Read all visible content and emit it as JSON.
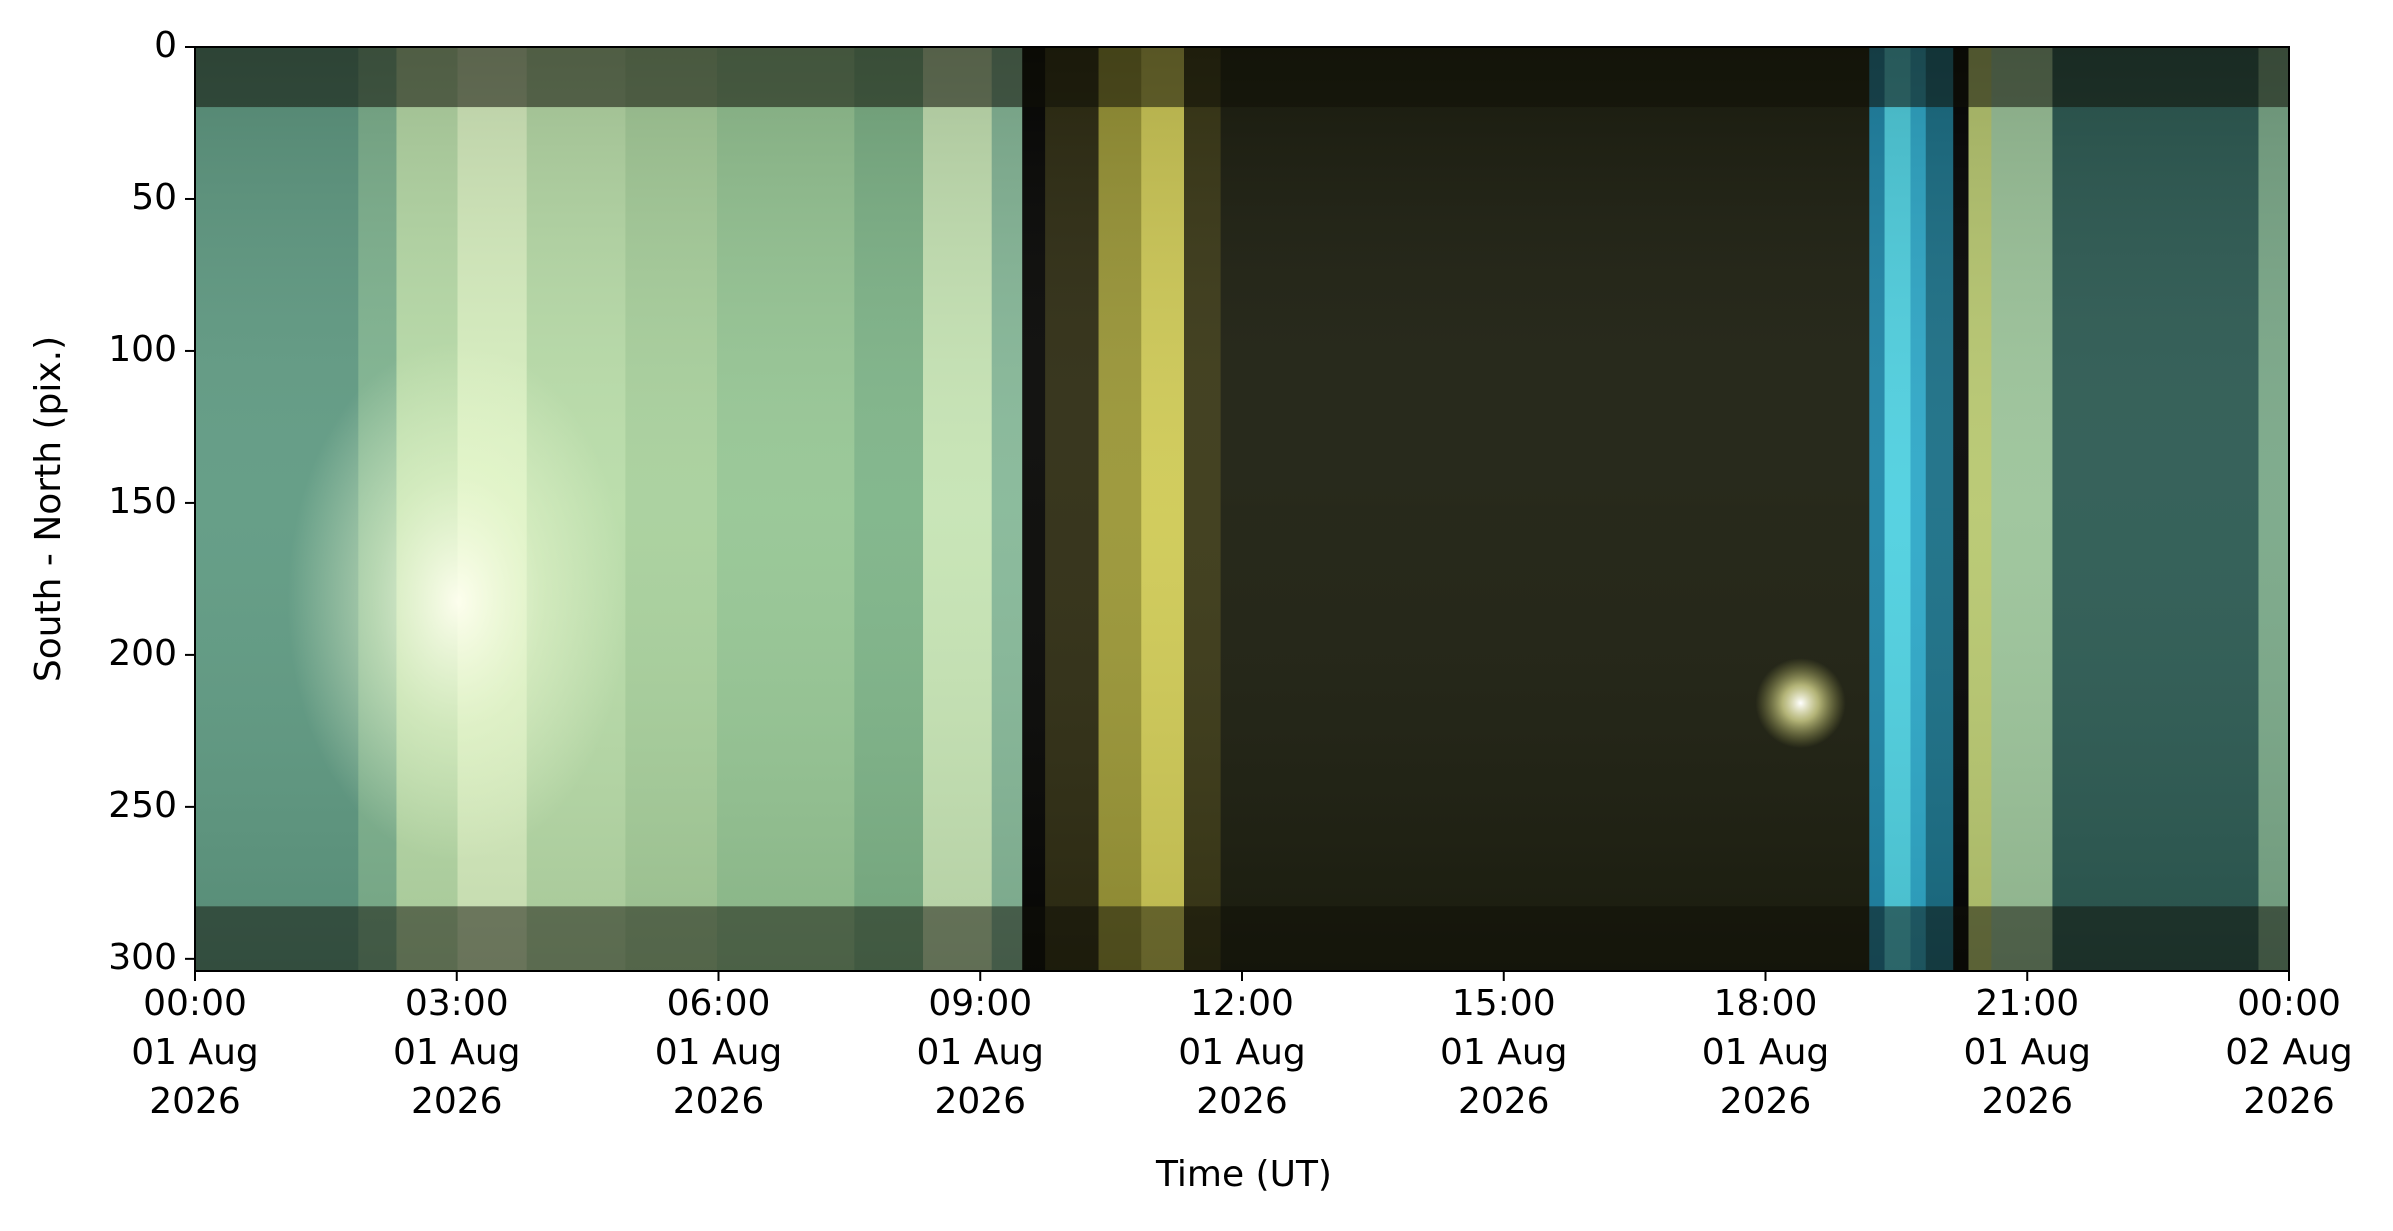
{
  "chart_data": {
    "type": "keogram",
    "xlabel": "Time (UT)",
    "ylabel": "South - North (pix.)",
    "xlim": [
      "2026-08-01T00:00",
      "2026-08-02T00:00"
    ],
    "xticks": [
      {
        "value": "2026-08-01T00:00",
        "label": "00:00\n01 Aug\n2026"
      },
      {
        "value": "2026-08-01T03:00",
        "label": "03:00\n01 Aug\n2026"
      },
      {
        "value": "2026-08-01T06:00",
        "label": "06:00\n01 Aug\n2026"
      },
      {
        "value": "2026-08-01T09:00",
        "label": "09:00\n01 Aug\n2026"
      },
      {
        "value": "2026-08-01T12:00",
        "label": "12:00\n01 Aug\n2026"
      },
      {
        "value": "2026-08-01T15:00",
        "label": "15:00\n01 Aug\n2026"
      },
      {
        "value": "2026-08-01T18:00",
        "label": "18:00\n01 Aug\n2026"
      },
      {
        "value": "2026-08-01T21:00",
        "label": "21:00\n01 Aug\n2026"
      },
      {
        "value": "2026-08-02T00:00",
        "label": "00:00\n02 Aug\n2026"
      }
    ],
    "ylim": [
      304,
      0
    ],
    "yticks": [
      0,
      50,
      100,
      150,
      200,
      250,
      300
    ]
  }
}
